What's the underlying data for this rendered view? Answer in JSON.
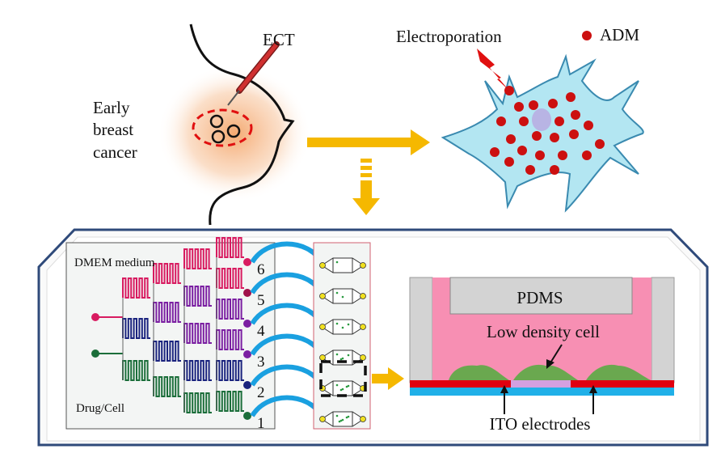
{
  "labels": {
    "ect": "ECT",
    "early_breast_cancer": [
      "Early",
      "breast",
      "cancer"
    ],
    "electroporation": "Electroporation",
    "adm": "ADM",
    "dmem_medium": "DMEM  medium",
    "drug_cell": "Drug/Cell",
    "channel_numbers": [
      "6",
      "5",
      "4",
      "3",
      "2",
      "1"
    ],
    "pdms": "PDMS",
    "low_density_cell": "Low density cell",
    "ito_electrodes": "ITO electrodes"
  },
  "colors": {
    "arrow": "#f5b800",
    "cell_body": "#b3e6f2",
    "adm_dot": "#cc1010",
    "tube": "#1aa0e0",
    "channel_red": "#d81b60",
    "channel_purple": "#7b1fa2",
    "channel_blue": "#1a237e",
    "channel_green": "#1b6e3a",
    "medium_pink": "#f78fb3",
    "electrode_red": "#e00010",
    "substrate_blue": "#20b0e8",
    "cell_green": "#6aa84f",
    "frame": "#2f4a7a"
  }
}
